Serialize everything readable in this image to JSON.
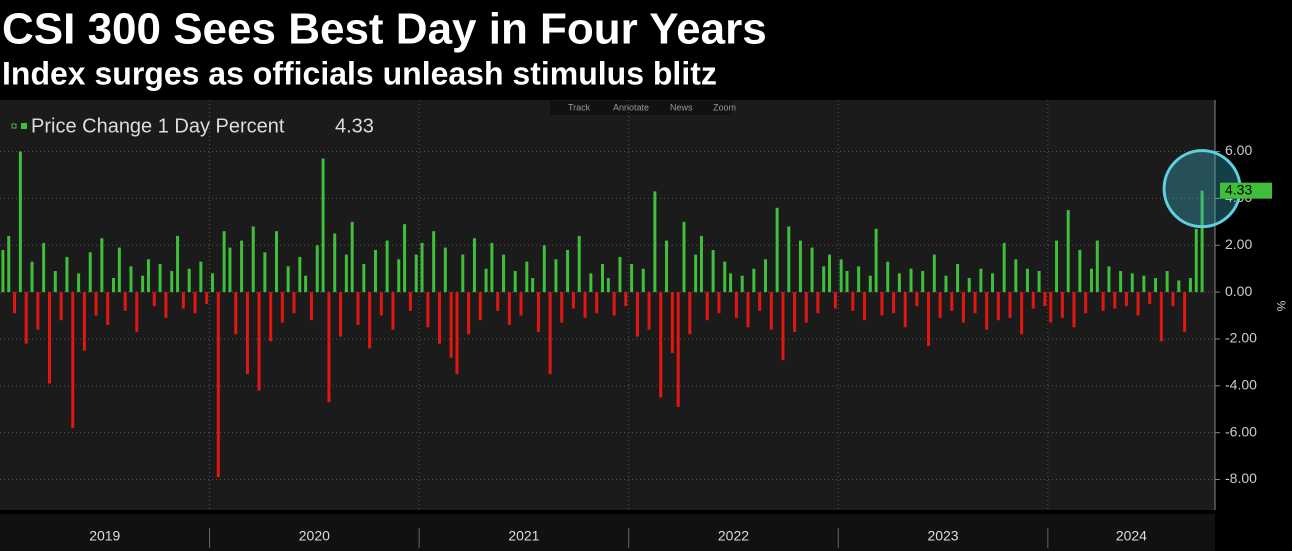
{
  "chart_data": {
    "type": "bar",
    "title": "CSI 300 Sees Best Day in Four Years",
    "subtitle": "Index surges as officials unleash stimulus blitz",
    "toolbar": [
      "Track",
      "Annotate",
      "News",
      "Zoom"
    ],
    "series_name": "Price Change 1 Day Percent",
    "y_axis_label": "%",
    "positive_color": "#3fbf3a",
    "negative_color": "#e3170f",
    "grid": true,
    "ylim": [
      -9.3,
      8.2
    ],
    "yticks": [
      {
        "value": -8,
        "label": "-8.00"
      },
      {
        "value": -6,
        "label": "-6.00"
      },
      {
        "value": -4,
        "label": "-4.00"
      },
      {
        "value": -2,
        "label": "-2.00"
      },
      {
        "value": 0,
        "label": "0.00"
      },
      {
        "value": 2,
        "label": "2.00"
      },
      {
        "value": 4,
        "label": "4.00"
      },
      {
        "value": 6,
        "label": "6.00"
      }
    ],
    "years": [
      {
        "label": "2019",
        "values": [
          1.8,
          2.4,
          -0.9,
          6.0,
          -2.2,
          1.3,
          -1.6,
          2.1,
          -3.9,
          0.9,
          -1.2,
          1.5,
          -5.8,
          0.8,
          -2.5,
          1.7,
          -1.0,
          2.3,
          -1.4,
          0.6,
          1.9,
          -0.8,
          1.1,
          -1.7,
          0.7,
          1.4,
          -0.6,
          1.2,
          -1.1,
          0.9,
          2.4,
          -0.7,
          1.0,
          -0.9,
          1.3,
          -0.5
        ]
      },
      {
        "label": "2020",
        "values": [
          0.8,
          -7.9,
          2.6,
          1.9,
          -1.8,
          2.2,
          -3.5,
          2.8,
          -4.2,
          1.7,
          -2.1,
          2.6,
          -1.3,
          1.1,
          -0.9,
          1.5,
          0.7,
          -1.2,
          2.0,
          5.7,
          -4.7,
          2.5,
          -1.9,
          1.6,
          3.0,
          -1.4,
          1.2,
          -2.4,
          1.8,
          -1.0,
          2.2,
          -1.6,
          1.4,
          2.9,
          -0.8,
          1.6
        ]
      },
      {
        "label": "2021",
        "values": [
          2.1,
          -1.5,
          2.6,
          -2.2,
          1.9,
          -2.8,
          -3.5,
          1.6,
          -1.8,
          2.3,
          -1.2,
          1.0,
          2.1,
          -0.8,
          1.6,
          -1.4,
          0.9,
          -1.0,
          1.3,
          0.6,
          -1.7,
          2.0,
          -3.5,
          1.4,
          -1.3,
          1.8,
          -0.7,
          2.4,
          -1.1,
          0.8,
          -0.9,
          1.2,
          0.6,
          -1.0,
          1.5,
          -0.6
        ]
      },
      {
        "label": "2022",
        "values": [
          1.2,
          -1.9,
          1.0,
          -1.6,
          4.3,
          -4.5,
          2.2,
          -2.6,
          -4.9,
          3.0,
          -1.8,
          1.6,
          2.4,
          -1.2,
          1.8,
          -0.9,
          1.3,
          0.8,
          -1.1,
          0.7,
          -1.5,
          1.0,
          -0.8,
          1.4,
          -1.6,
          3.6,
          -2.9,
          2.8,
          -1.7,
          2.2,
          -1.3,
          1.9,
          -0.9,
          1.1,
          1.6,
          -0.7
        ]
      },
      {
        "label": "2023",
        "values": [
          1.4,
          0.9,
          -0.8,
          1.1,
          -1.2,
          0.7,
          2.7,
          -1.0,
          1.3,
          -0.9,
          0.8,
          -1.5,
          1.0,
          -0.6,
          0.9,
          -2.3,
          1.6,
          -1.1,
          0.7,
          -0.8,
          1.2,
          -1.3,
          0.6,
          -0.9,
          1.0,
          -1.6,
          0.8,
          -1.2,
          2.1,
          -1.1,
          1.4,
          -1.8,
          1.0,
          -0.7,
          0.9,
          -0.6
        ]
      },
      {
        "label": "2024",
        "values": [
          -1.3,
          2.2,
          -1.1,
          3.5,
          -1.5,
          1.8,
          -0.9,
          1.0,
          2.2,
          -0.8,
          1.1,
          -0.7,
          0.9,
          -0.6,
          0.8,
          -1.0,
          0.7,
          -0.5,
          0.6,
          -2.1,
          0.9,
          -0.6,
          0.5,
          -1.7,
          0.6,
          2.7,
          4.33
        ]
      }
    ]
  }
}
